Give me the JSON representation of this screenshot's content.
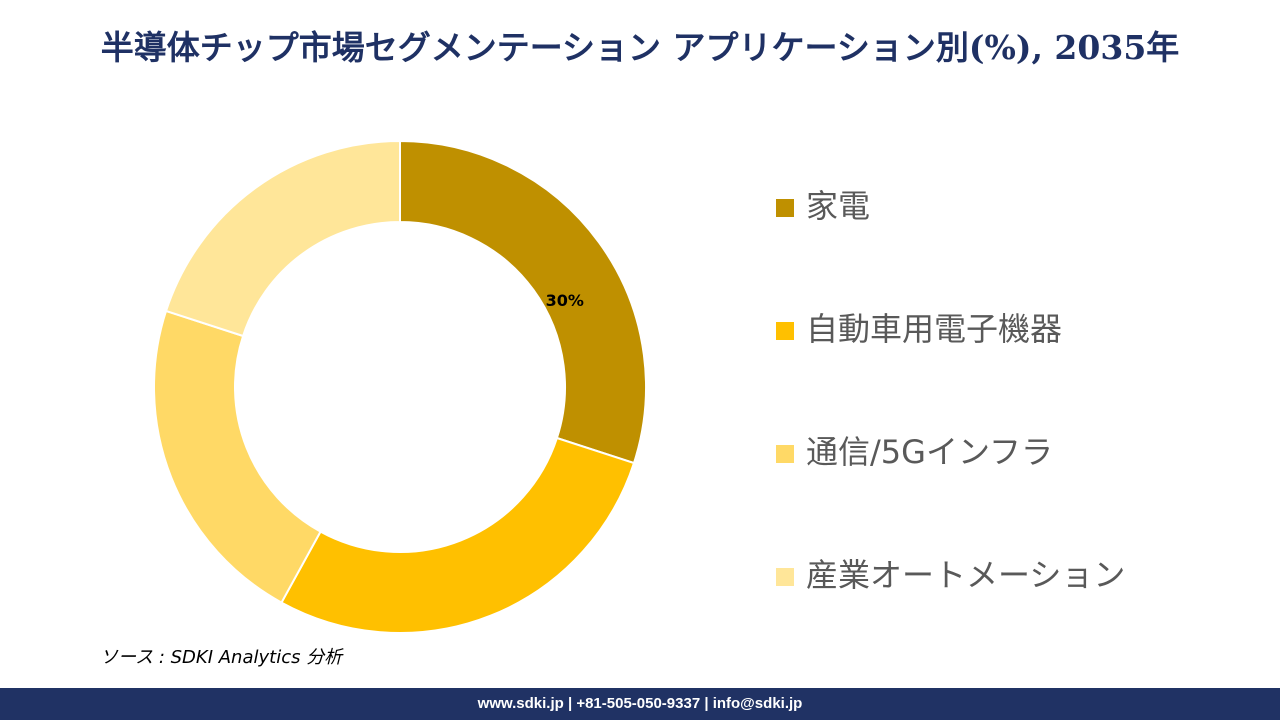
{
  "chart_data": {
    "type": "donut",
    "title": "半導体チップ市場セグメンテーション アプリケーション別(%), 2035年",
    "categories": [
      "家電",
      "自動車用電子機器",
      "通信/5Gインフラ",
      "産業オートメーション"
    ],
    "values": [
      30,
      28,
      22,
      20
    ],
    "value_labels": [
      "30%",
      null,
      null,
      null
    ],
    "colors": [
      "#BF9000",
      "#FFC000",
      "#FFD966",
      "#FFE699"
    ]
  },
  "source": "ソース : SDKI Analytics 分析",
  "footer": "www.sdki.jp | +81-505-050-9337 | info@sdki.jp"
}
